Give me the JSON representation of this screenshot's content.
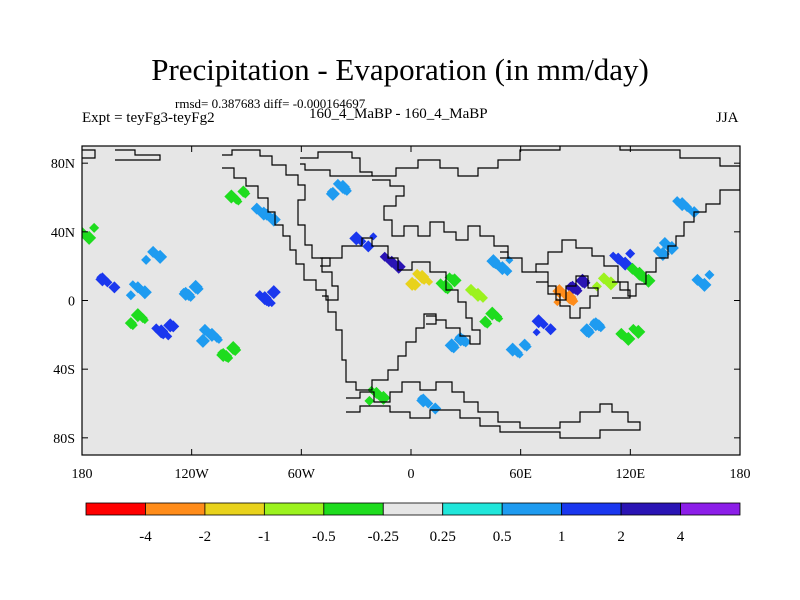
{
  "title": "Precipitation - Evaporation (in mm/day)",
  "stats": "rmsd= 0.387683 diff= -0.000164697",
  "experiment": "Expt = teyFg3-teyFg2",
  "period": "160_4_MaBP - 160_4_MaBP",
  "season": "JJA",
  "chart_data": {
    "type": "heatmap",
    "title": "Precipitation - Evaporation (in mm/day)",
    "subtitle": "160_4_MaBP - 160_4_MaBP",
    "xlim": [
      -180,
      180
    ],
    "ylim": [
      -90,
      90
    ],
    "lon_ticks": [
      {
        "value": -180,
        "label": "180"
      },
      {
        "value": -120,
        "label": "120W"
      },
      {
        "value": -60,
        "label": "60W"
      },
      {
        "value": 0,
        "label": "0"
      },
      {
        "value": 60,
        "label": "60E"
      },
      {
        "value": 120,
        "label": "120E"
      },
      {
        "value": 180,
        "label": "180"
      }
    ],
    "lat_ticks": [
      {
        "value": 80,
        "label": "80N"
      },
      {
        "value": 40,
        "label": "40N"
      },
      {
        "value": 0,
        "label": "0"
      },
      {
        "value": -40,
        "label": "40S"
      },
      {
        "value": -80,
        "label": "80S"
      }
    ],
    "colorbar": {
      "boundaries": [
        "-4",
        "-2",
        "-1",
        "-0.5",
        "-0.25",
        "0.25",
        "0.5",
        "1",
        "2",
        "4"
      ],
      "colors": [
        "#ff0000",
        "#ff8c1a",
        "#e8d21c",
        "#9cf21e",
        "#1edc1e",
        "#e6e6e6",
        "#20e6da",
        "#1e9bf0",
        "#1a37ee",
        "#2a14b4",
        "#8c1ee8"
      ]
    },
    "anomaly_patches": [
      {
        "lon": -165,
        "lat": 10,
        "value": 1
      },
      {
        "lon": -150,
        "lat": 6,
        "value": 0.5
      },
      {
        "lon": -120,
        "lat": 5,
        "value": 0.5
      },
      {
        "lon": -80,
        "lat": 2,
        "value": 1
      },
      {
        "lon": -140,
        "lat": 26,
        "value": 0.5
      },
      {
        "lon": -150,
        "lat": -12,
        "value": -0.5
      },
      {
        "lon": -135,
        "lat": -18,
        "value": 1
      },
      {
        "lon": -110,
        "lat": -20,
        "value": 0.5
      },
      {
        "lon": -175,
        "lat": 40,
        "value": -0.5
      },
      {
        "lon": -95,
        "lat": 60,
        "value": -0.5
      },
      {
        "lon": -80,
        "lat": 50,
        "value": 0.5
      },
      {
        "lon": -40,
        "lat": 65,
        "value": 0.5
      },
      {
        "lon": -25,
        "lat": 35,
        "value": 1
      },
      {
        "lon": -10,
        "lat": 22,
        "value": 2
      },
      {
        "lon": 5,
        "lat": 12,
        "value": -2
      },
      {
        "lon": 20,
        "lat": 10,
        "value": -0.5
      },
      {
        "lon": 35,
        "lat": 5,
        "value": -1
      },
      {
        "lon": 45,
        "lat": -10,
        "value": -0.5
      },
      {
        "lon": 25,
        "lat": -25,
        "value": 0.5
      },
      {
        "lon": 50,
        "lat": 20,
        "value": 0.5
      },
      {
        "lon": 72,
        "lat": -15,
        "value": 1
      },
      {
        "lon": 60,
        "lat": -28,
        "value": 0.5
      },
      {
        "lon": 90,
        "lat": 8,
        "value": 2
      },
      {
        "lon": 85,
        "lat": 2,
        "value": -4
      },
      {
        "lon": 105,
        "lat": 10,
        "value": -1
      },
      {
        "lon": 115,
        "lat": 25,
        "value": 1
      },
      {
        "lon": 125,
        "lat": 15,
        "value": -0.5
      },
      {
        "lon": 140,
        "lat": 30,
        "value": 0.5
      },
      {
        "lon": 160,
        "lat": 12,
        "value": 0.5
      },
      {
        "lon": 150,
        "lat": 55,
        "value": 0.5
      },
      {
        "lon": 100,
        "lat": -15,
        "value": 0.5
      },
      {
        "lon": 120,
        "lat": -20,
        "value": -0.5
      },
      {
        "lon": 10,
        "lat": -60,
        "value": 0.5
      },
      {
        "lon": -20,
        "lat": -55,
        "value": -0.5
      },
      {
        "lon": -100,
        "lat": -30,
        "value": -0.5
      }
    ]
  }
}
